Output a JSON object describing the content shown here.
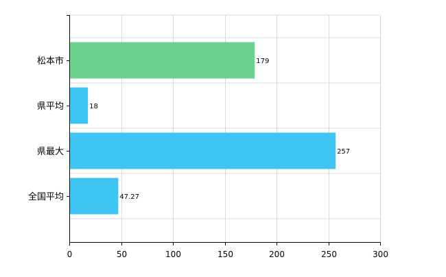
{
  "chart_data": {
    "type": "bar",
    "orientation": "horizontal",
    "categories": [
      "松本市",
      "県平均",
      "県最大",
      "全国平均"
    ],
    "values": [
      179,
      18,
      257,
      47.27
    ],
    "value_labels": [
      "179",
      "18",
      "257",
      "47.27"
    ],
    "bar_colors": [
      "#6dd18e",
      "#3ec5f2",
      "#3ec5f2",
      "#3ec5f2"
    ],
    "title": "",
    "xlabel": "",
    "ylabel": "",
    "xlim": [
      0,
      300
    ],
    "x_ticks": [
      0,
      50,
      100,
      150,
      200,
      250,
      300
    ],
    "x_tick_labels": [
      "0",
      "50",
      "100",
      "150",
      "200",
      "250",
      "300"
    ],
    "grid": true,
    "legend": "none",
    "grid_color": "#d9d9d9",
    "axis_color": "#000000"
  }
}
